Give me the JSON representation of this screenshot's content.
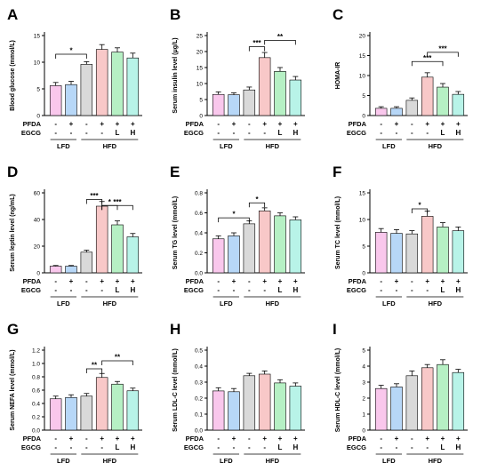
{
  "figure": {
    "groups": [
      "LFD",
      "HFD"
    ],
    "row_labels": [
      "PFDA",
      "EGCG"
    ],
    "pfda": [
      "-",
      "+",
      "-",
      "+",
      "+",
      "+"
    ],
    "egcg": [
      "-",
      "-",
      "-",
      "-",
      "L",
      "H"
    ],
    "bar_colors": [
      "#f9c7ec",
      "#b7d7f7",
      "#d9d9d9",
      "#f8c8c8",
      "#b6f0c4",
      "#b8f3e8"
    ]
  },
  "chart_data": [
    {
      "panel": "A",
      "type": "bar",
      "ylabel": "Blood glucose (mmol/L)",
      "ylim": [
        0,
        15
      ],
      "yticks": [
        0,
        5,
        10,
        15
      ],
      "values": [
        5.6,
        5.8,
        9.6,
        12.4,
        11.9,
        10.8
      ],
      "errors": [
        0.6,
        0.6,
        0.5,
        0.9,
        0.8,
        0.9
      ],
      "significance": [
        {
          "from": 0,
          "to": 2,
          "label": "*",
          "y": 11.5
        }
      ]
    },
    {
      "panel": "B",
      "type": "bar",
      "ylabel": "Serum insulin level (μg/L)",
      "ylim": [
        0,
        25
      ],
      "yticks": [
        0,
        5,
        10,
        15,
        20,
        25
      ],
      "values": [
        6.6,
        6.5,
        8.0,
        18.1,
        13.8,
        11.1
      ],
      "errors": [
        0.8,
        0.6,
        0.9,
        1.6,
        1.2,
        1.1
      ],
      "significance": [
        {
          "from": 2,
          "to": 3,
          "label": "***",
          "y": 21.5
        },
        {
          "from": 3,
          "to": 5,
          "label": "**",
          "y": 23.5
        }
      ]
    },
    {
      "panel": "C",
      "type": "bar",
      "ylabel": "HOMA-IR",
      "ylim": [
        0,
        20
      ],
      "yticks": [
        0,
        5,
        10,
        15,
        20
      ],
      "values": [
        1.8,
        1.8,
        3.8,
        9.6,
        7.1,
        5.3
      ],
      "errors": [
        0.4,
        0.4,
        0.6,
        1.1,
        0.9,
        0.7
      ],
      "significance": [
        {
          "from": 2,
          "to": 4,
          "label": "***",
          "y": 13.5
        },
        {
          "from": 3,
          "to": 5,
          "label": "***",
          "y": 15.8
        }
      ]
    },
    {
      "panel": "D",
      "type": "bar",
      "ylabel": "Serum leptin level (ng/mL)",
      "ylim": [
        0,
        60
      ],
      "yticks": [
        0,
        20,
        40,
        60
      ],
      "values": [
        5.0,
        5.0,
        15.5,
        50.0,
        36.0,
        27.0
      ],
      "errors": [
        0.5,
        0.5,
        1.5,
        3.5,
        3.0,
        2.5
      ],
      "significance": [
        {
          "from": 2,
          "to": 3,
          "label": "***",
          "y": 55.0
        },
        {
          "from": 3,
          "to": 4,
          "label": "*",
          "y": 50.5
        },
        {
          "from": 3,
          "to": 5,
          "label": "***",
          "y": 50.5
        }
      ]
    },
    {
      "panel": "E",
      "type": "bar",
      "ylabel": "Serum TG level (mmol/L)",
      "ylim": [
        0.0,
        0.8
      ],
      "yticks": [
        0.0,
        0.2,
        0.4,
        0.6,
        0.8
      ],
      "values": [
        0.34,
        0.37,
        0.49,
        0.62,
        0.57,
        0.53
      ],
      "errors": [
        0.03,
        0.03,
        0.03,
        0.03,
        0.03,
        0.03
      ],
      "significance": [
        {
          "from": 0,
          "to": 2,
          "label": "*",
          "y": 0.55
        },
        {
          "from": 2,
          "to": 3,
          "label": "*",
          "y": 0.7
        }
      ]
    },
    {
      "panel": "F",
      "type": "bar",
      "ylabel": "Serum TC level (mmol/L)",
      "ylim": [
        0,
        15
      ],
      "yticks": [
        0,
        5,
        10,
        15
      ],
      "values": [
        7.6,
        7.4,
        7.3,
        10.6,
        8.6,
        7.9
      ],
      "errors": [
        0.7,
        0.7,
        0.6,
        1.0,
        0.8,
        0.7
      ],
      "significance": [
        {
          "from": 2,
          "to": 3,
          "label": "*",
          "y": 12.0
        }
      ]
    },
    {
      "panel": "G",
      "type": "bar",
      "ylabel": "Serum NEFA level (mmol/L)",
      "ylim": [
        0.0,
        1.2
      ],
      "yticks": [
        0.0,
        0.2,
        0.4,
        0.6,
        0.8,
        1.0,
        1.2
      ],
      "values": [
        0.47,
        0.49,
        0.51,
        0.79,
        0.69,
        0.59
      ],
      "errors": [
        0.04,
        0.04,
        0.04,
        0.06,
        0.04,
        0.04
      ],
      "significance": [
        {
          "from": 2,
          "to": 3,
          "label": "**",
          "y": 0.92
        },
        {
          "from": 3,
          "to": 5,
          "label": "**",
          "y": 1.04
        }
      ]
    },
    {
      "panel": "H",
      "type": "bar",
      "ylabel": "Serum LDL-C level (mmol/L)",
      "ylim": [
        0.0,
        0.5
      ],
      "yticks": [
        0.0,
        0.1,
        0.2,
        0.3,
        0.4,
        0.5
      ],
      "values": [
        0.245,
        0.24,
        0.34,
        0.35,
        0.295,
        0.275
      ],
      "errors": [
        0.02,
        0.02,
        0.015,
        0.02,
        0.02,
        0.02
      ],
      "significance": []
    },
    {
      "panel": "I",
      "type": "bar",
      "ylabel": "Serum HDL-C level (mmol/L)",
      "ylim": [
        0,
        5
      ],
      "yticks": [
        0,
        1,
        2,
        3,
        4,
        5
      ],
      "values": [
        2.6,
        2.7,
        3.4,
        3.9,
        4.1,
        3.6
      ],
      "errors": [
        0.2,
        0.2,
        0.3,
        0.2,
        0.3,
        0.2
      ],
      "significance": []
    }
  ]
}
